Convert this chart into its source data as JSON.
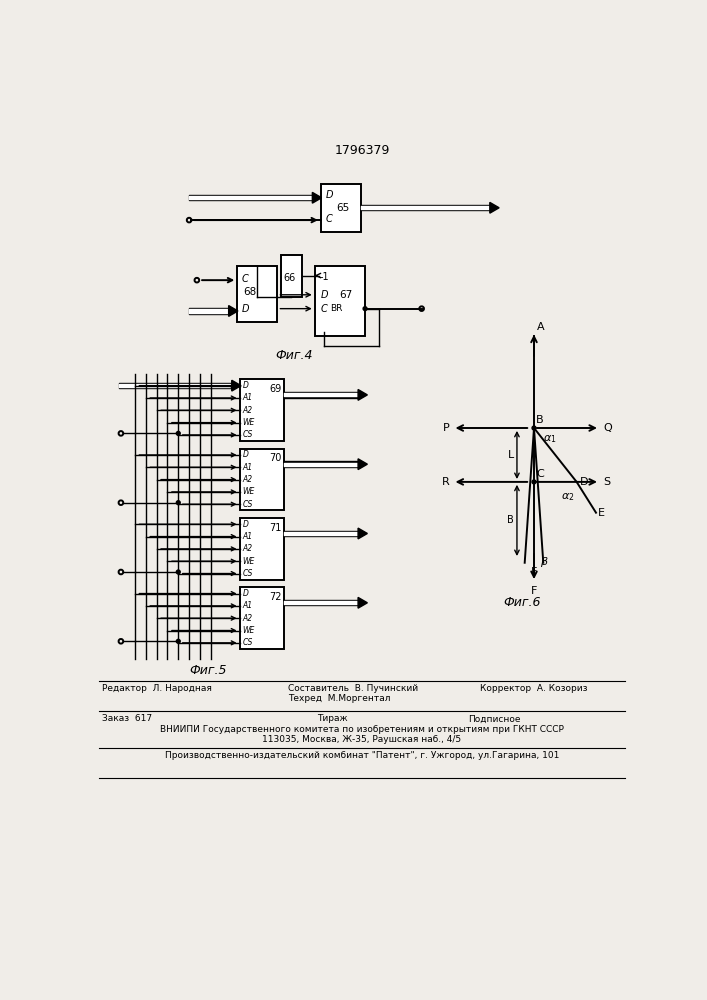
{
  "title": "1796379",
  "bg_color": "#f0ede8",
  "fig4_label": "Фиг.4",
  "fig5_label": "Фиг.5",
  "fig6_label": "Фиг.6"
}
